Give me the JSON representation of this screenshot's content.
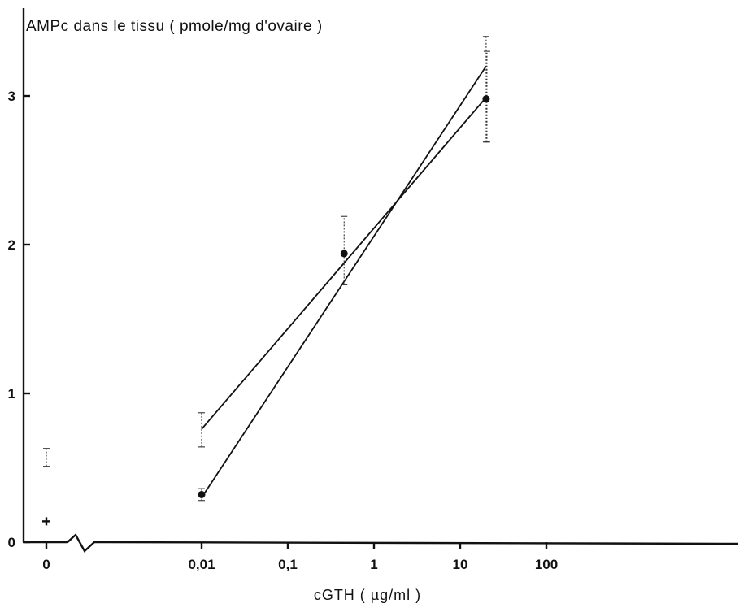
{
  "chart_data": {
    "type": "line",
    "ylabel": "AMPc dans le tissu ( pmole/mg d'ovaire )",
    "xlabel": "cGTH ( µg/ml )",
    "x_scale": "log",
    "y_ticks": [
      0,
      1,
      2,
      3
    ],
    "y_tick_labels": [
      "0",
      "1",
      "2",
      "3"
    ],
    "x_tick_labels": [
      "0",
      "0,01",
      "0,1",
      "1",
      "10",
      "100"
    ],
    "x_tick_values": [
      0,
      0.01,
      0.1,
      1,
      10,
      100
    ],
    "ylim": [
      0,
      3.5
    ],
    "grid": false,
    "series": [
      {
        "marker": "filled-circle",
        "points": [
          {
            "x": 0.01,
            "y": 0.32,
            "err_low": 0.28,
            "err_high": 0.36
          },
          {
            "x": 0.45,
            "y": 1.94,
            "err_low": 1.73,
            "err_high": 2.19
          },
          {
            "x": 20,
            "y": 2.98,
            "err_low": 2.69,
            "err_high": 3.4
          }
        ],
        "fit_line": [
          {
            "x": 0.01,
            "y": 0.3
          },
          {
            "x": 20,
            "y": 3.2
          }
        ]
      },
      {
        "marker": "none",
        "points": [
          {
            "x": 0.01,
            "y": 0.76,
            "err_low": 0.64,
            "err_high": 0.87
          },
          {
            "x": 20,
            "y": 2.99,
            "err_low": 2.69,
            "err_high": 3.3
          }
        ],
        "fit_line": [
          {
            "x": 0.01,
            "y": 0.76
          },
          {
            "x": 20,
            "y": 2.99
          }
        ]
      }
    ],
    "controls": [
      {
        "x": 0,
        "y": 0.57,
        "err_low": 0.51,
        "err_high": 0.63,
        "marker": "none"
      },
      {
        "x": 0,
        "y": 0.14,
        "marker": "plus"
      }
    ]
  }
}
